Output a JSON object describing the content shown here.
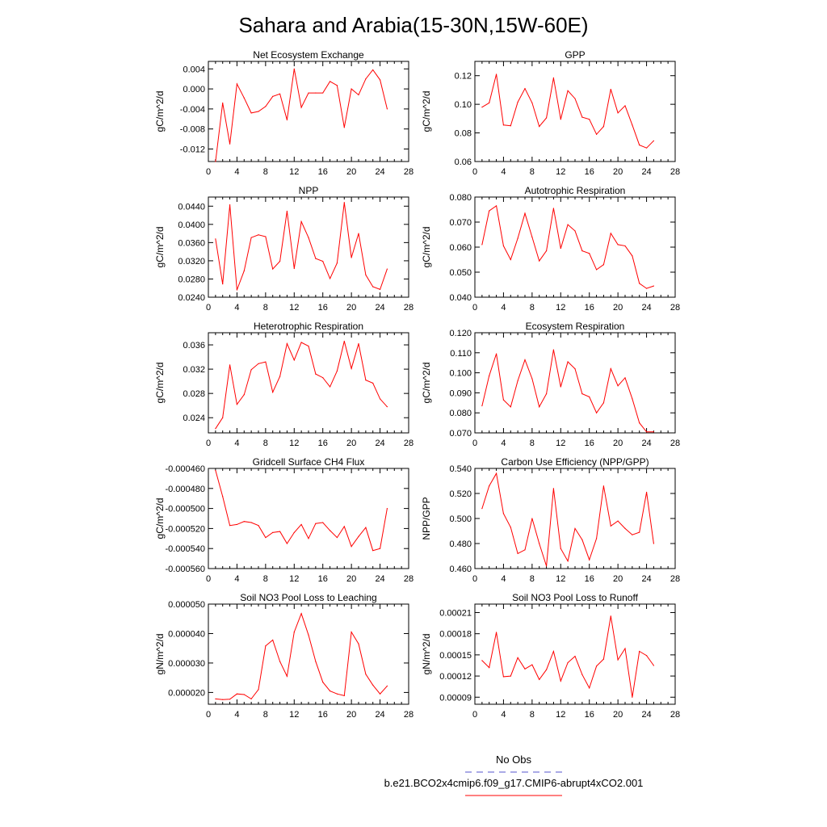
{
  "title": "Sahara and Arabia(15-30N,15W-60E)",
  "legend": {
    "entries": [
      {
        "label": "No Obs",
        "color": "#5555cc",
        "style": "dashed"
      },
      {
        "label": "b.e21.BCO2x4cmip6.f09_g17.CMIP6-abrupt4xCO2.001",
        "color": "#ff0000",
        "style": "solid"
      }
    ]
  },
  "chart_data": [
    {
      "type": "line",
      "title": "Net Ecosystem Exchange",
      "ylabel": "gC/m^2/d",
      "xlim": [
        0,
        28
      ],
      "xticks": [
        "0",
        "4",
        "8",
        "12",
        "16",
        "20",
        "24",
        "28"
      ],
      "ylim": [
        -0.0145,
        0.0055
      ],
      "yticks": [
        {
          "v": 0.004,
          "l": "0.004"
        },
        {
          "v": 0.0,
          "l": "0.000"
        },
        {
          "v": -0.004,
          "l": "-0.004"
        },
        {
          "v": -0.008,
          "l": "-0.008"
        },
        {
          "v": -0.012,
          "l": "-0.012"
        }
      ],
      "series": [
        {
          "name": "b.e21.BCO2x4cmip6.f09_g17.CMIP6-abrupt4xCO2.001",
          "color": "#ff0000",
          "x": [
            1,
            2,
            3,
            4,
            5,
            6,
            7,
            8,
            9,
            10,
            11,
            12,
            13,
            14,
            15,
            16,
            17,
            18,
            19,
            20,
            21,
            22,
            23,
            24,
            25
          ],
          "values": [
            -0.0145,
            -0.0028,
            -0.011,
            0.001,
            -0.0018,
            -0.0048,
            -0.0045,
            -0.0035,
            -0.0015,
            -0.001,
            -0.0062,
            0.004,
            -0.0037,
            -0.0008,
            -0.0008,
            -0.0008,
            0.0015,
            0.0007,
            -0.0077,
            0.0,
            -0.0012,
            0.002,
            0.0038,
            0.0018,
            -0.004
          ]
        }
      ]
    },
    {
      "type": "line",
      "title": "GPP",
      "ylabel": "gC/m^2/d",
      "xlim": [
        0,
        28
      ],
      "xticks": [
        "0",
        "4",
        "8",
        "12",
        "16",
        "20",
        "24",
        "28"
      ],
      "ylim": [
        0.06,
        0.13
      ],
      "yticks": [
        {
          "v": 0.12,
          "l": "0.12"
        },
        {
          "v": 0.1,
          "l": "0.10"
        },
        {
          "v": 0.08,
          "l": "0.08"
        },
        {
          "v": 0.06,
          "l": "0.06"
        }
      ],
      "series": [
        {
          "name": "b.e21.BCO2x4cmip6.f09_g17.CMIP6-abrupt4xCO2.001",
          "color": "#ff0000",
          "x": [
            1,
            2,
            3,
            4,
            5,
            6,
            7,
            8,
            9,
            10,
            11,
            12,
            13,
            14,
            15,
            16,
            17,
            18,
            19,
            20,
            21,
            22,
            23,
            24,
            25
          ],
          "values": [
            0.098,
            0.101,
            0.121,
            0.0855,
            0.085,
            0.1015,
            0.111,
            0.101,
            0.0845,
            0.0905,
            0.1185,
            0.0895,
            0.1095,
            0.104,
            0.091,
            0.0895,
            0.079,
            0.0845,
            0.1105,
            0.094,
            0.099,
            0.0855,
            0.0715,
            0.0695,
            0.0745
          ]
        }
      ]
    },
    {
      "type": "line",
      "title": "NPP",
      "ylabel": "gC/m^2/d",
      "xlim": [
        0,
        28
      ],
      "xticks": [
        "0",
        "4",
        "8",
        "12",
        "16",
        "20",
        "24",
        "28"
      ],
      "ylim": [
        0.024,
        0.046
      ],
      "yticks": [
        {
          "v": 0.044,
          "l": "0.0440"
        },
        {
          "v": 0.04,
          "l": "0.0400"
        },
        {
          "v": 0.036,
          "l": "0.0360"
        },
        {
          "v": 0.032,
          "l": "0.0320"
        },
        {
          "v": 0.028,
          "l": "0.0280"
        },
        {
          "v": 0.024,
          "l": "0.0240"
        }
      ],
      "series": [
        {
          "name": "b.e21.BCO2x4cmip6.f09_g17.CMIP6-abrupt4xCO2.001",
          "color": "#ff0000",
          "x": [
            1,
            2,
            3,
            4,
            5,
            6,
            7,
            8,
            9,
            10,
            11,
            12,
            13,
            14,
            15,
            16,
            17,
            18,
            19,
            20,
            21,
            22,
            23,
            24,
            25
          ],
          "values": [
            0.0368,
            0.0269,
            0.0443,
            0.0256,
            0.0298,
            0.0371,
            0.0377,
            0.0373,
            0.0302,
            0.0319,
            0.0429,
            0.0303,
            0.0406,
            0.0371,
            0.0325,
            0.0319,
            0.0281,
            0.0315,
            0.0448,
            0.0327,
            0.038,
            0.0289,
            0.0263,
            0.0257,
            0.0302
          ]
        }
      ]
    },
    {
      "type": "line",
      "title": "Autotrophic Respiration",
      "ylabel": "gC/m^2/d",
      "xlim": [
        0,
        28
      ],
      "xticks": [
        "0",
        "4",
        "8",
        "12",
        "16",
        "20",
        "24",
        "28"
      ],
      "ylim": [
        0.04,
        0.08
      ],
      "yticks": [
        {
          "v": 0.08,
          "l": "0.080"
        },
        {
          "v": 0.07,
          "l": "0.070"
        },
        {
          "v": 0.06,
          "l": "0.060"
        },
        {
          "v": 0.05,
          "l": "0.050"
        },
        {
          "v": 0.04,
          "l": "0.040"
        }
      ],
      "series": [
        {
          "name": "b.e21.BCO2x4cmip6.f09_g17.CMIP6-abrupt4xCO2.001",
          "color": "#ff0000",
          "x": [
            1,
            2,
            3,
            4,
            5,
            6,
            7,
            8,
            9,
            10,
            11,
            12,
            13,
            14,
            15,
            16,
            17,
            18,
            19,
            20,
            21,
            22,
            23,
            24,
            25
          ],
          "values": [
            0.061,
            0.0745,
            0.0765,
            0.0605,
            0.055,
            0.0635,
            0.0735,
            0.064,
            0.0545,
            0.0585,
            0.0755,
            0.0595,
            0.069,
            0.0665,
            0.0585,
            0.0575,
            0.051,
            0.053,
            0.0655,
            0.061,
            0.0605,
            0.0565,
            0.0455,
            0.0435,
            0.0445
          ]
        }
      ]
    },
    {
      "type": "line",
      "title": "Heterotrophic Respiration",
      "ylabel": "gC/m^2/d",
      "xlim": [
        0,
        28
      ],
      "xticks": [
        "0",
        "4",
        "8",
        "12",
        "16",
        "20",
        "24",
        "28"
      ],
      "ylim": [
        0.0215,
        0.038
      ],
      "yticks": [
        {
          "v": 0.036,
          "l": "0.036"
        },
        {
          "v": 0.032,
          "l": "0.032"
        },
        {
          "v": 0.028,
          "l": "0.028"
        },
        {
          "v": 0.024,
          "l": "0.024"
        }
      ],
      "series": [
        {
          "name": "b.e21.BCO2x4cmip6.f09_g17.CMIP6-abrupt4xCO2.001",
          "color": "#ff0000",
          "x": [
            1,
            2,
            3,
            4,
            5,
            6,
            7,
            8,
            9,
            10,
            11,
            12,
            13,
            14,
            15,
            16,
            17,
            18,
            19,
            20,
            21,
            22,
            23,
            24,
            25
          ],
          "values": [
            0.0222,
            0.024,
            0.0327,
            0.0262,
            0.0278,
            0.0319,
            0.0329,
            0.0332,
            0.0282,
            0.0308,
            0.0362,
            0.0335,
            0.0364,
            0.0358,
            0.0312,
            0.0306,
            0.0291,
            0.0317,
            0.0366,
            0.0321,
            0.0362,
            0.0302,
            0.0297,
            0.0271,
            0.0258
          ]
        }
      ]
    },
    {
      "type": "line",
      "title": "Ecosystem Respiration",
      "ylabel": "gC/m^2/d",
      "xlim": [
        0,
        28
      ],
      "xticks": [
        "0",
        "4",
        "8",
        "12",
        "16",
        "20",
        "24",
        "28"
      ],
      "ylim": [
        0.07,
        0.12
      ],
      "yticks": [
        {
          "v": 0.12,
          "l": "0.120"
        },
        {
          "v": 0.11,
          "l": "0.110"
        },
        {
          "v": 0.1,
          "l": "0.100"
        },
        {
          "v": 0.09,
          "l": "0.090"
        },
        {
          "v": 0.08,
          "l": "0.080"
        },
        {
          "v": 0.07,
          "l": "0.070"
        }
      ],
      "series": [
        {
          "name": "b.e21.BCO2x4cmip6.f09_g17.CMIP6-abrupt4xCO2.001",
          "color": "#ff0000",
          "x": [
            1,
            2,
            3,
            4,
            5,
            6,
            7,
            8,
            9,
            10,
            11,
            12,
            13,
            14,
            15,
            16,
            17,
            18,
            19,
            20,
            21,
            22,
            23,
            24,
            25
          ],
          "values": [
            0.0835,
            0.0985,
            0.1095,
            0.0865,
            0.083,
            0.096,
            0.1065,
            0.097,
            0.083,
            0.0895,
            0.1115,
            0.093,
            0.1055,
            0.102,
            0.0895,
            0.088,
            0.08,
            0.085,
            0.102,
            0.0935,
            0.0975,
            0.087,
            0.075,
            0.0705,
            0.0705
          ]
        }
      ]
    },
    {
      "type": "line",
      "title": "Gridcell Surface CH4 Flux",
      "ylabel": "gC/m^2/d",
      "xlim": [
        0,
        28
      ],
      "xticks": [
        "0",
        "4",
        "8",
        "12",
        "16",
        "20",
        "24",
        "28"
      ],
      "ylim": [
        -0.00056,
        -0.00046
      ],
      "yticks": [
        {
          "v": -0.00046,
          "l": "-0.000460"
        },
        {
          "v": -0.00048,
          "l": "-0.000480"
        },
        {
          "v": -0.0005,
          "l": "-0.000500"
        },
        {
          "v": -0.00052,
          "l": "-0.000520"
        },
        {
          "v": -0.00054,
          "l": "-0.000540"
        },
        {
          "v": -0.00056,
          "l": "-0.000560"
        }
      ],
      "series": [
        {
          "name": "b.e21.BCO2x4cmip6.f09_g17.CMIP6-abrupt4xCO2.001",
          "color": "#ff0000",
          "x": [
            1,
            2,
            3,
            4,
            5,
            6,
            7,
            8,
            9,
            10,
            11,
            12,
            13,
            14,
            15,
            16,
            17,
            18,
            19,
            20,
            21,
            22,
            23,
            24,
            25
          ],
          "values": [
            -0.000462,
            -0.000488,
            -0.000517,
            -0.000516,
            -0.000513,
            -0.000514,
            -0.000517,
            -0.000529,
            -0.000524,
            -0.000523,
            -0.000535,
            -0.000524,
            -0.000516,
            -0.00053,
            -0.000515,
            -0.000514,
            -0.000522,
            -0.000529,
            -0.000518,
            -0.000538,
            -0.000528,
            -0.000519,
            -0.000542,
            -0.00054,
            -0.0005
          ]
        }
      ]
    },
    {
      "type": "line",
      "title": "Carbon Use Efficiency (NPP/GPP)",
      "ylabel": "NPP/GPP",
      "xlim": [
        0,
        28
      ],
      "xticks": [
        "0",
        "4",
        "8",
        "12",
        "16",
        "20",
        "24",
        "28"
      ],
      "ylim": [
        0.46,
        0.54
      ],
      "yticks": [
        {
          "v": 0.54,
          "l": "0.540"
        },
        {
          "v": 0.52,
          "l": "0.520"
        },
        {
          "v": 0.5,
          "l": "0.500"
        },
        {
          "v": 0.48,
          "l": "0.480"
        },
        {
          "v": 0.46,
          "l": "0.460"
        }
      ],
      "series": [
        {
          "name": "b.e21.BCO2x4cmip6.f09_g17.CMIP6-abrupt4xCO2.001",
          "color": "#ff0000",
          "x": [
            1,
            2,
            3,
            4,
            5,
            6,
            7,
            8,
            9,
            10,
            11,
            12,
            13,
            14,
            15,
            16,
            17,
            18,
            19,
            20,
            21,
            22,
            23,
            24,
            25
          ],
          "values": [
            0.508,
            0.526,
            0.536,
            0.504,
            0.493,
            0.472,
            0.475,
            0.5,
            0.48,
            0.462,
            0.524,
            0.476,
            0.466,
            0.492,
            0.483,
            0.467,
            0.484,
            0.526,
            0.494,
            0.498,
            0.492,
            0.487,
            0.489,
            0.521,
            0.48
          ]
        }
      ]
    },
    {
      "type": "line",
      "title": "Soil NO3 Pool Loss to Leaching",
      "ylabel": "gN/m^2/d",
      "xlim": [
        0,
        28
      ],
      "xticks": [
        "0",
        "4",
        "8",
        "12",
        "16",
        "20",
        "24",
        "28"
      ],
      "ylim": [
        1.6e-05,
        5e-05
      ],
      "yticks": [
        {
          "v": 5e-05,
          "l": "0.000050"
        },
        {
          "v": 4e-05,
          "l": "0.000040"
        },
        {
          "v": 3e-05,
          "l": "0.000030"
        },
        {
          "v": 2e-05,
          "l": "0.000020"
        }
      ],
      "series": [
        {
          "name": "b.e21.BCO2x4cmip6.f09_g17.CMIP6-abrupt4xCO2.001",
          "color": "#ff0000",
          "x": [
            1,
            2,
            3,
            4,
            5,
            6,
            7,
            8,
            9,
            10,
            11,
            12,
            13,
            14,
            15,
            16,
            17,
            18,
            19,
            20,
            21,
            22,
            23,
            24,
            25
          ],
          "values": [
            1.78e-05,
            1.76e-05,
            1.77e-05,
            1.95e-05,
            1.93e-05,
            1.78e-05,
            2.1e-05,
            3.58e-05,
            3.78e-05,
            3.05e-05,
            2.55e-05,
            4.05e-05,
            4.68e-05,
            3.95e-05,
            3.05e-05,
            2.35e-05,
            2.05e-05,
            1.95e-05,
            1.89e-05,
            4.05e-05,
            3.65e-05,
            2.62e-05,
            2.25e-05,
            1.95e-05,
            2.22e-05
          ]
        }
      ]
    },
    {
      "type": "line",
      "title": "Soil NO3 Pool Loss to Runoff",
      "ylabel": "gN/m^2/d",
      "xlim": [
        0,
        28
      ],
      "xticks": [
        "0",
        "4",
        "8",
        "12",
        "16",
        "20",
        "24",
        "28"
      ],
      "ylim": [
        8e-05,
        0.000222
      ],
      "yticks": [
        {
          "v": 0.00021,
          "l": "0.00021"
        },
        {
          "v": 0.00018,
          "l": "0.00018"
        },
        {
          "v": 0.00015,
          "l": "0.00015"
        },
        {
          "v": 0.00012,
          "l": "0.00012"
        },
        {
          "v": 9e-05,
          "l": "0.00009"
        }
      ],
      "series": [
        {
          "name": "b.e21.BCO2x4cmip6.f09_g17.CMIP6-abrupt4xCO2.001",
          "color": "#ff0000",
          "x": [
            1,
            2,
            3,
            4,
            5,
            6,
            7,
            8,
            9,
            10,
            11,
            12,
            13,
            14,
            15,
            16,
            17,
            18,
            19,
            20,
            21,
            22,
            23,
            24,
            25
          ],
          "values": [
            0.000142,
            0.000132,
            0.000182,
            0.000119,
            0.00012,
            0.000146,
            0.00013,
            0.000136,
            0.000115,
            0.000129,
            0.000155,
            0.000113,
            0.000139,
            0.000148,
            0.000122,
            0.000103,
            0.000134,
            0.000144,
            0.000205,
            0.000143,
            0.000159,
            9e-05,
            0.000155,
            0.000149,
            0.000135
          ]
        }
      ]
    }
  ]
}
